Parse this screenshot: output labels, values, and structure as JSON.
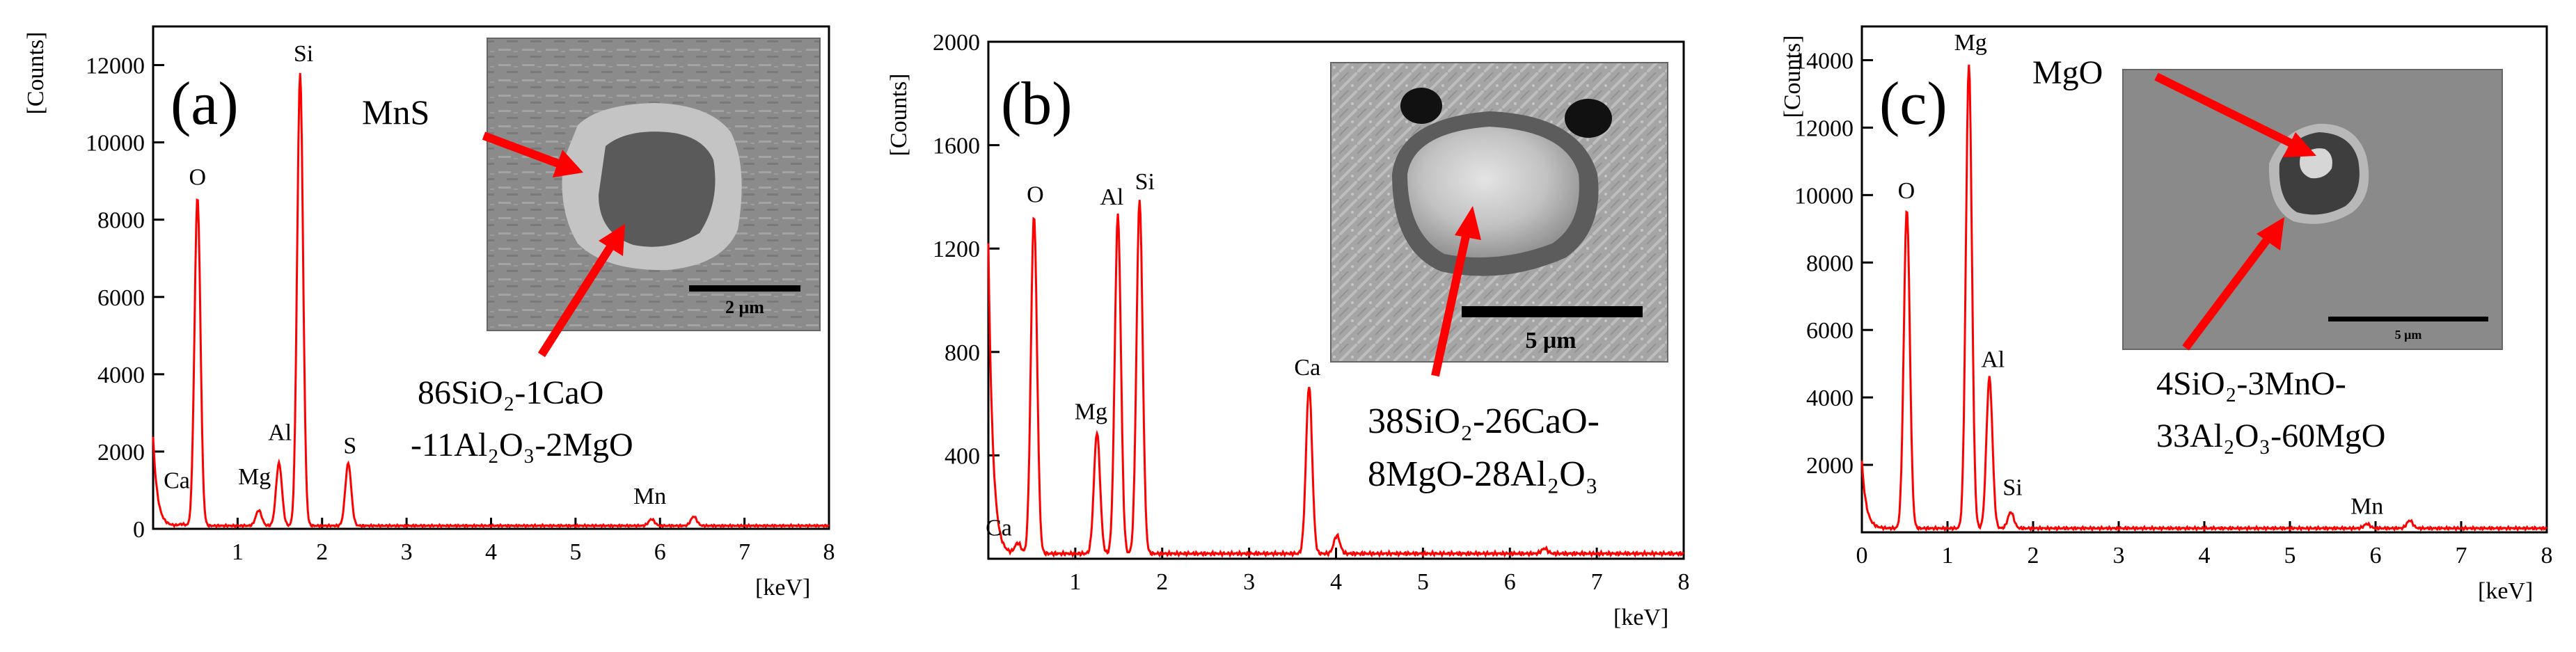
{
  "chart_data": [
    {
      "type": "line",
      "panel_label": "(a)",
      "ylabel": "[Counts]",
      "xlabel": "[keV]",
      "xlim": [
        0,
        8
      ],
      "ylim": [
        0,
        13000
      ],
      "x_ticks": [
        1,
        2,
        3,
        4,
        5,
        6,
        7,
        8
      ],
      "y_ticks": [
        0,
        2000,
        4000,
        6000,
        8000,
        10000,
        12000
      ],
      "baseline_start": 2300,
      "baseline": 80,
      "peaks": [
        {
          "label": "Ca",
          "x": 0.34,
          "y": 120,
          "label_x": 0.28,
          "label_y": 1050
        },
        {
          "label": "O",
          "x": 0.525,
          "y": 8600,
          "label_x": 0.525,
          "label_y": 8900
        },
        {
          "label": "Mg",
          "x": 1.25,
          "y": 480,
          "label_x": 1.2,
          "label_y": 1150
        },
        {
          "label": "Al",
          "x": 1.49,
          "y": 1700,
          "label_x": 1.5,
          "label_y": 2300
        },
        {
          "label": "Si",
          "x": 1.74,
          "y": 11800,
          "label_x": 1.78,
          "label_y": 12100
        },
        {
          "label": "S",
          "x": 2.31,
          "y": 1700,
          "label_x": 2.33,
          "label_y": 1950
        },
        {
          "label": "Mn",
          "x": 5.9,
          "y": 250,
          "label_x": 5.88,
          "label_y": 650
        },
        {
          "label": "",
          "x": 6.4,
          "y": 320
        }
      ],
      "inset_labels": [
        "MnS",
        "86SiO₂-1CaO",
        "-11Al₂O₃-2MgO"
      ],
      "scale_bar": "2 μm"
    },
    {
      "type": "line",
      "panel_label": "(b)",
      "ylabel": "[Counts]",
      "xlabel": "[keV]",
      "xlim": [
        0,
        8
      ],
      "ylim": [
        0,
        2000
      ],
      "x_ticks": [
        1,
        2,
        3,
        4,
        5,
        6,
        7,
        8
      ],
      "y_ticks": [
        400,
        800,
        1200,
        1600,
        2000
      ],
      "baseline_start": 1200,
      "baseline": 20,
      "peaks": [
        {
          "label": "Ca",
          "x": 0.34,
          "y": 60,
          "label_x": 0.12,
          "label_y": 90
        },
        {
          "label": "O",
          "x": 0.525,
          "y": 1330,
          "label_x": 0.54,
          "label_y": 1380
        },
        {
          "label": "Mg",
          "x": 1.25,
          "y": 490,
          "label_x": 1.18,
          "label_y": 540
        },
        {
          "label": "Al",
          "x": 1.49,
          "y": 1330,
          "label_x": 1.42,
          "label_y": 1370
        },
        {
          "label": "Si",
          "x": 1.74,
          "y": 1390,
          "label_x": 1.8,
          "label_y": 1430
        },
        {
          "label": "Ca",
          "x": 3.69,
          "y": 670,
          "label_x": 3.67,
          "label_y": 710
        },
        {
          "label": "",
          "x": 4.01,
          "y": 90
        },
        {
          "label": "",
          "x": 6.4,
          "y": 40
        }
      ],
      "inset_labels": [
        "38SiO₂-26CaO-",
        "8MgO-28Al₂O₃"
      ],
      "scale_bar": "5 μm"
    },
    {
      "type": "line",
      "panel_label": "(c)",
      "ylabel": "[Counts]",
      "xlabel": "[keV]",
      "xlim": [
        0,
        8
      ],
      "ylim": [
        0,
        15000
      ],
      "x_ticks": [
        0,
        1,
        2,
        3,
        4,
        5,
        6,
        7,
        8
      ],
      "y_ticks": [
        2000,
        4000,
        6000,
        8000,
        10000,
        12000,
        14000
      ],
      "baseline_start": 2000,
      "baseline": 120,
      "peaks": [
        {
          "label": "O",
          "x": 0.525,
          "y": 9600,
          "label_x": 0.52,
          "label_y": 9900
        },
        {
          "label": "Mg",
          "x": 1.25,
          "y": 13900,
          "label_x": 1.27,
          "label_y": 14300
        },
        {
          "label": "Al",
          "x": 1.49,
          "y": 4600,
          "label_x": 1.53,
          "label_y": 4900
        },
        {
          "label": "Si",
          "x": 1.74,
          "y": 600,
          "label_x": 1.76,
          "label_y": 1100
        },
        {
          "label": "Mn",
          "x": 5.9,
          "y": 250,
          "label_x": 5.9,
          "label_y": 550
        },
        {
          "label": "",
          "x": 6.4,
          "y": 350
        }
      ],
      "inset_labels": [
        "MgO",
        "4SiO₂-3MnO-",
        "33Al₂O₃-60MgO"
      ],
      "scale_bar": "5 μm"
    }
  ]
}
